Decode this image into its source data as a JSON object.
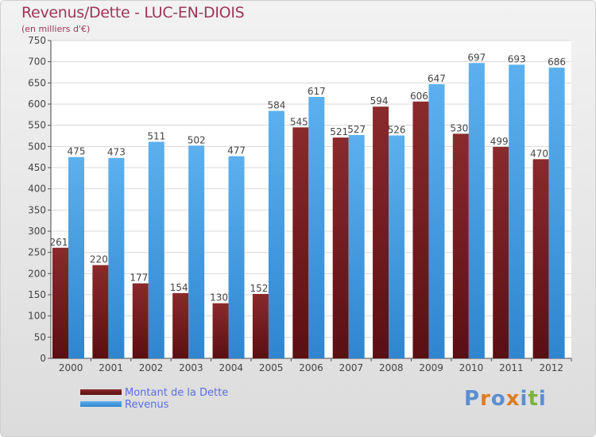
{
  "header": {
    "title": "Revenus/Dette - LUC-EN-DIOIS",
    "subtitle": "(en milliers d'€)"
  },
  "legend": [
    {
      "label": "Montant de la Dette",
      "color": "#7a1e22"
    },
    {
      "label": "Revenus",
      "color": "#4aa3e6"
    }
  ],
  "brand": {
    "text": "Proxiti",
    "letters": [
      "P",
      "r",
      "o",
      "x",
      "i",
      "t",
      "i"
    ],
    "colors": [
      "#5b8fd0",
      "#e07b20",
      "#5b8fd0",
      "#e07b20",
      "#5b8fd0",
      "#7fb241",
      "#5b8fd0"
    ]
  },
  "chart_data": {
    "type": "bar",
    "title": "Revenus/Dette - LUC-EN-DIOIS",
    "subtitle": "(en milliers d'€)",
    "categories": [
      "2000",
      "2001",
      "2002",
      "2003",
      "2004",
      "2005",
      "2006",
      "2007",
      "2008",
      "2009",
      "2010",
      "2011",
      "2012"
    ],
    "series": [
      {
        "name": "Montant de la Dette",
        "values": [
          261,
          220,
          177,
          154,
          130,
          152,
          545,
          521,
          594,
          606,
          530,
          499,
          470
        ],
        "color": "#7a1e22"
      },
      {
        "name": "Revenus",
        "values": [
          475,
          473,
          511,
          502,
          477,
          584,
          617,
          527,
          526,
          647,
          697,
          693,
          686
        ],
        "color": "#4aa3e6"
      }
    ],
    "ylim": [
      0,
      750
    ],
    "yticks": [
      0,
      50,
      100,
      150,
      200,
      250,
      300,
      350,
      400,
      450,
      500,
      550,
      600,
      650,
      700,
      750
    ],
    "grid": true,
    "legend_position": "bottom-left"
  }
}
